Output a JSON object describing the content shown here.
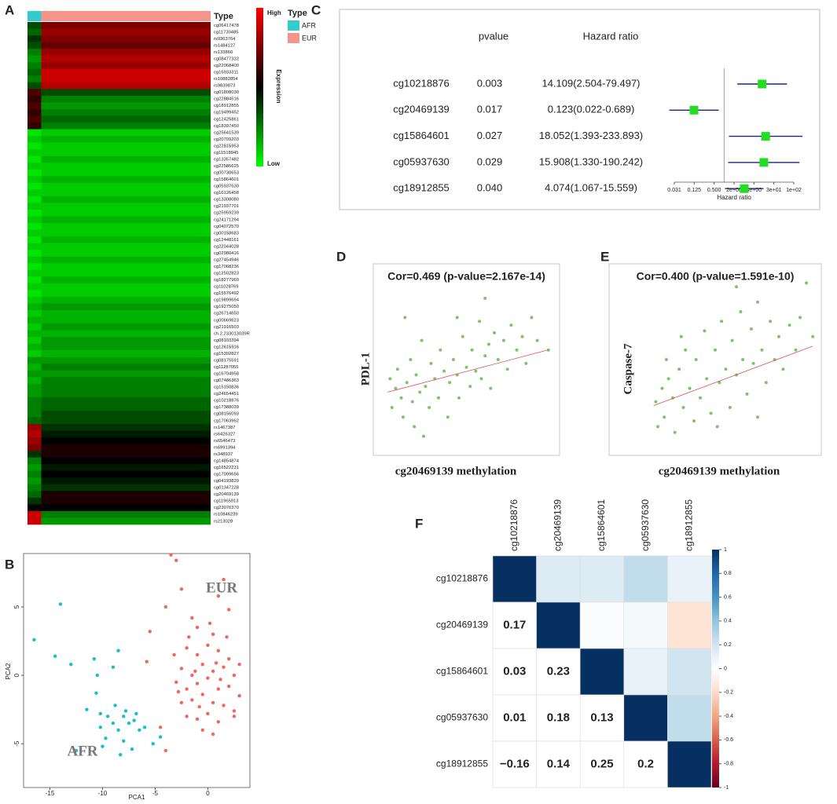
{
  "panel_labels": [
    "A",
    "B",
    "C",
    "D",
    "E",
    "F"
  ],
  "chart_data": [
    {
      "type": "heatmap",
      "type_label": "Type",
      "legend_title": "Expression",
      "high_label": "High",
      "low_label": "Low",
      "clim": [
        -1,
        1
      ],
      "colors": [
        "#00ff00",
        "#000000",
        "#ff0000"
      ],
      "groups": [
        "AFR",
        "EUR"
      ],
      "group_colors": [
        "#33cccc",
        "#f4948a"
      ],
      "group_sizes": [
        30,
        370
      ],
      "rows": [
        "cg06417478",
        "cg11730485",
        "rs9363764",
        "rs1484127",
        "rs133860",
        "cg08477332",
        "cg22068400",
        "cg16933311",
        "rs10882854",
        "rs9839873",
        "cg01808030",
        "cg22884516",
        "cg18912855",
        "cg19499452",
        "cg12425861",
        "cg18397450",
        "cg25641539",
        "cg20709203",
        "cg22815953",
        "cg11518945",
        "cg13357482",
        "cg22586625",
        "cg00730653",
        "cg15864601",
        "cg05937630",
        "cg16126458",
        "cg13308080",
        "cg21937701",
        "cg25959239",
        "cg24171294",
        "cg04072570",
        "cg00158683",
        "cg12448161",
        "cg22044028",
        "cg02980416",
        "cg27454946",
        "cg17068236",
        "cg12502823",
        "cg18277960",
        "cg11028769",
        "cg15576492",
        "cg19899694",
        "cg19275050",
        "cg26714650",
        "cg00669623",
        "cg21916503",
        "ch.2.233013039R",
        "cg08103394",
        "cg12615916",
        "cg15392827",
        "cg08175591",
        "cg11287055",
        "cg16704958",
        "cg07486363",
        "cg15150836",
        "cg24654451",
        "cg10218876",
        "cg17388039",
        "cg08156093",
        "cg17063962",
        "rs1467387",
        "rs6426327",
        "rs6546473",
        "rs6991394",
        "rs348937",
        "cg14854874",
        "cg16522231",
        "cg17099656",
        "cg04193820",
        "cg01347228",
        "cg20469139",
        "cg11965913",
        "cg23076370",
        "rs10846239",
        "rs213028"
      ],
      "values": [
        [
          -0.3,
          0.5
        ],
        [
          -0.4,
          0.6
        ],
        [
          -0.2,
          0.5
        ],
        [
          -0.3,
          0.4
        ],
        [
          -0.5,
          0.6
        ],
        [
          -0.6,
          0.7
        ],
        [
          -0.5,
          0.6
        ],
        [
          -0.4,
          0.8
        ],
        [
          -0.5,
          0.8
        ],
        [
          -0.3,
          0.7
        ],
        [
          0.3,
          -0.3
        ],
        [
          0.2,
          -0.5
        ],
        [
          0.3,
          -0.6
        ],
        [
          0.2,
          -0.5
        ],
        [
          0.3,
          -0.4
        ],
        [
          0.2,
          -0.5
        ],
        [
          -0.9,
          -0.8
        ],
        [
          -0.8,
          -0.7
        ],
        [
          -0.9,
          -0.8
        ],
        [
          -0.8,
          -0.8
        ],
        [
          -0.9,
          -0.7
        ],
        [
          -0.8,
          -0.8
        ],
        [
          -0.9,
          -0.8
        ],
        [
          -0.8,
          -0.7
        ],
        [
          -0.9,
          -0.8
        ],
        [
          -0.8,
          -0.8
        ],
        [
          -0.9,
          -0.7
        ],
        [
          -0.8,
          -0.8
        ],
        [
          -0.9,
          -0.8
        ],
        [
          -0.8,
          -0.7
        ],
        [
          -0.9,
          -0.8
        ],
        [
          -0.8,
          -0.8
        ],
        [
          -0.9,
          -0.7
        ],
        [
          -0.8,
          -0.8
        ],
        [
          -0.9,
          -0.8
        ],
        [
          -0.8,
          -0.7
        ],
        [
          -0.9,
          -0.8
        ],
        [
          -0.8,
          -0.8
        ],
        [
          -0.9,
          -0.7
        ],
        [
          -0.8,
          -0.8
        ],
        [
          -0.9,
          -0.8
        ],
        [
          -0.8,
          -0.7
        ],
        [
          -0.7,
          -0.6
        ],
        [
          -0.8,
          -0.7
        ],
        [
          -0.7,
          -0.7
        ],
        [
          -0.8,
          -0.6
        ],
        [
          -0.7,
          -0.7
        ],
        [
          -0.8,
          -0.6
        ],
        [
          -0.7,
          -0.6
        ],
        [
          -0.8,
          -0.7
        ],
        [
          -0.6,
          -0.6
        ],
        [
          -0.7,
          -0.5
        ],
        [
          -0.6,
          -0.6
        ],
        [
          -0.7,
          -0.5
        ],
        [
          -0.6,
          -0.5
        ],
        [
          -0.6,
          -0.5
        ],
        [
          -0.5,
          -0.4
        ],
        [
          -0.5,
          -0.4
        ],
        [
          -0.5,
          -0.3
        ],
        [
          -0.4,
          -0.3
        ],
        [
          0.6,
          -0.2
        ],
        [
          0.7,
          -0.1
        ],
        [
          0.6,
          0
        ],
        [
          0.5,
          0.1
        ],
        [
          -0.2,
          0.1
        ],
        [
          -0.5,
          0
        ],
        [
          -0.6,
          -0.1
        ],
        [
          -0.5,
          0
        ],
        [
          -0.6,
          -0.1
        ],
        [
          -0.5,
          -0.2
        ],
        [
          -0.4,
          0.1
        ],
        [
          -0.2,
          0.1
        ],
        [
          0,
          0
        ],
        [
          0.8,
          -0.5
        ],
        [
          0.8,
          -0.6
        ]
      ]
    },
    {
      "type": "scatter",
      "x_label": "PCA1",
      "y_label": "PCA2",
      "xlim": [
        -17.5,
        4
      ],
      "ylim": [
        -8.2,
        8.9
      ],
      "xticks": [
        -15,
        -10,
        -5,
        0
      ],
      "yticks": [
        -5,
        0,
        5
      ],
      "series": [
        {
          "name": "AFR",
          "color": "#1bbec4",
          "x": [
            -16.5,
            -14,
            -14.5,
            -13,
            -11.5,
            -10.8,
            -10.5,
            -10.6,
            -10.2,
            -9,
            -8.5,
            -9.5,
            -9,
            -8.5,
            -8,
            -7.5,
            -7,
            -6.5,
            -6,
            -7.8,
            -8.8,
            -9.7,
            -12.5,
            -10,
            -8.3,
            -7.2,
            -5.2,
            -4.5,
            -6.8,
            -8,
            -10.2
          ],
          "y": [
            2.6,
            5.2,
            1.4,
            0.8,
            -2.5,
            1.2,
            0,
            -1.3,
            -2.8,
            0.6,
            1.8,
            -3,
            -3.5,
            -4,
            -4.8,
            -3.5,
            -3.3,
            -4,
            -3.8,
            -2.6,
            -2.2,
            -4.6,
            -5.5,
            -5.2,
            -5.8,
            -5.4,
            -5,
            -4.5,
            -2.8,
            -3,
            -3.8
          ]
        },
        {
          "name": "EUR",
          "color": "#f0675e",
          "x": [
            -3.5,
            -3,
            -2.5,
            -4,
            -5.5,
            -5.8,
            1,
            1.5,
            2,
            -1,
            0.5,
            -1.5,
            -4.5,
            -4,
            2.5,
            -2,
            -1,
            0,
            1,
            2,
            -2.5,
            -1.5,
            -0.5,
            0.5,
            1.5,
            2.5,
            -3,
            -2,
            -1,
            0,
            1,
            2,
            3,
            -2.5,
            -1.5,
            -0.5,
            0.5,
            1.5,
            2.5,
            -2,
            -1,
            0,
            1,
            -0.5,
            0.5,
            -1.8,
            0.2,
            1.8,
            -3.2,
            3,
            -0.8,
            0.8,
            -1.2,
            1.2,
            -2.8
          ],
          "y": [
            8.8,
            8.4,
            6.3,
            5,
            3.2,
            1,
            5.8,
            7,
            4.8,
            3.5,
            3,
            4.2,
            -3.8,
            -5.5,
            -3,
            2,
            1.5,
            2.2,
            1.8,
            1.2,
            0.5,
            0,
            0.8,
            0.3,
            0.6,
            0,
            -0.5,
            -1,
            -0.6,
            -0.2,
            -1,
            -0.8,
            -1.5,
            -2,
            -1.8,
            -1.4,
            -2,
            -2.2,
            -2.6,
            -3,
            -3.2,
            -2.8,
            -3.4,
            -4,
            -4.3,
            2.8,
            3.8,
            2.8,
            1.5,
            0.8,
            -2.3,
            0.9,
            0.3,
            -0.3,
            -1.2
          ]
        }
      ]
    },
    {
      "type": "forest",
      "pvalue_header": "pvalue",
      "hr_header": "Hazard ratio",
      "x_label": "Hazard ratio",
      "log_x": true,
      "xlim": [
        0.03125,
        128
      ],
      "reference_line": 1,
      "color": "#22dd22",
      "whisker_color": "#1a237e",
      "xticks": [
        {
          "value": 0.03125,
          "label": "0.031"
        },
        0.125,
        {
          "value": 0.5,
          "label": "0.500"
        },
        {
          "value": 2,
          "label": "2e+00"
        },
        {
          "value": 8,
          "label": "8e+00"
        },
        {
          "value": 32,
          "label": "3e+01"
        },
        {
          "value": 128,
          "label": "1e+02"
        }
      ],
      "rows": [
        {
          "name": "cg10218876",
          "pvalue": 0.003,
          "pvalue_label": "0.003",
          "hr": 14.109,
          "lower": 2.504,
          "upper": 79.497,
          "hr_label": "14.109(2.504-79.497)"
        },
        {
          "name": "cg20469139",
          "pvalue": 0.017,
          "pvalue_label": "0.017",
          "hr": 0.123,
          "lower": 0.022,
          "upper": 0.689,
          "hr_label": "0.123(0.022-0.689)"
        },
        {
          "name": "cg15864601",
          "pvalue": 0.027,
          "pvalue_label": "0.027",
          "hr": 18.052,
          "lower": 1.393,
          "upper": 233.893,
          "hr_label": "18.052(1.393-233.893)"
        },
        {
          "name": "cg05937630",
          "pvalue": 0.029,
          "pvalue_label": "0.029",
          "hr": 15.908,
          "lower": 1.33,
          "upper": 190.242,
          "hr_label": "15.908(1.330-190.242)"
        },
        {
          "name": "cg18912855",
          "pvalue": 0.04,
          "pvalue_label": "0.040",
          "hr": 4.074,
          "lower": 1.067,
          "upper": 15.559,
          "hr_label": "4.074(1.067-15.559)"
        }
      ]
    },
    {
      "type": "scatter",
      "title": "Cor=0.469 (p-value=2.167e-14)",
      "x_label": "cg20469139 methylation",
      "y_label": "PDL-1",
      "xlim": [
        0,
        1
      ],
      "ylim": [
        0,
        1
      ],
      "fit_color": "#e05050",
      "fit": {
        "x": [
          0.076,
          0.937
        ],
        "y": [
          0.33,
          0.55
        ]
      },
      "series": [
        {
          "name": "samples",
          "color": "#7cc46a",
          "x": [
            0.09,
            0.1,
            0.12,
            0.13,
            0.15,
            0.16,
            0.18,
            0.2,
            0.21,
            0.23,
            0.25,
            0.26,
            0.28,
            0.3,
            0.31,
            0.33,
            0.35,
            0.36,
            0.38,
            0.4,
            0.41,
            0.43,
            0.45,
            0.46,
            0.48,
            0.5,
            0.52,
            0.53,
            0.55,
            0.57,
            0.58,
            0.6,
            0.62,
            0.63,
            0.65,
            0.67,
            0.7,
            0.72,
            0.74,
            0.77,
            0.8,
            0.82,
            0.85,
            0.6,
            0.88,
            0.94,
            0.17,
            0.27,
            0.22,
            0.45
          ],
          "y": [
            0.4,
            0.25,
            0.35,
            0.45,
            0.3,
            0.2,
            0.38,
            0.5,
            0.28,
            0.42,
            0.33,
            0.6,
            0.36,
            0.25,
            0.48,
            0.4,
            0.3,
            0.55,
            0.44,
            0.2,
            0.38,
            0.5,
            0.42,
            0.3,
            0.62,
            0.46,
            0.36,
            0.55,
            0.44,
            0.7,
            0.4,
            0.52,
            0.58,
            0.35,
            0.64,
            0.5,
            0.6,
            0.45,
            0.68,
            0.55,
            0.62,
            0.48,
            0.72,
            0.82,
            0.6,
            0.55,
            0.72,
            0.1,
            0.15,
            0.72
          ]
        }
      ]
    },
    {
      "type": "scatter",
      "title": "Cor=0.400 (p-value=1.591e-10)",
      "x_label": "cg20469139 methylation",
      "y_label": "Caspase-7",
      "xlim": [
        0,
        1
      ],
      "ylim": [
        0,
        1
      ],
      "fit_color": "#e05050",
      "fit": {
        "x": [
          0.21,
          0.96
        ],
        "y": [
          0.26,
          0.57
        ]
      },
      "series": [
        {
          "name": "samples",
          "color": "#7cc46a",
          "x": [
            0.22,
            0.23,
            0.25,
            0.26,
            0.28,
            0.3,
            0.31,
            0.33,
            0.35,
            0.36,
            0.38,
            0.4,
            0.41,
            0.43,
            0.45,
            0.46,
            0.48,
            0.5,
            0.52,
            0.53,
            0.55,
            0.57,
            0.58,
            0.6,
            0.62,
            0.63,
            0.65,
            0.67,
            0.68,
            0.7,
            0.72,
            0.74,
            0.76,
            0.78,
            0.8,
            0.82,
            0.85,
            0.88,
            0.9,
            0.93,
            0.96,
            0.27,
            0.34,
            0.51,
            0.7,
            0.6
          ],
          "y": [
            0.28,
            0.15,
            0.35,
            0.2,
            0.4,
            0.3,
            0.12,
            0.45,
            0.25,
            0.55,
            0.35,
            0.18,
            0.5,
            0.3,
            0.65,
            0.4,
            0.22,
            0.55,
            0.38,
            0.7,
            0.45,
            0.25,
            0.6,
            0.42,
            0.75,
            0.5,
            0.32,
            0.66,
            0.48,
            0.8,
            0.55,
            0.38,
            0.7,
            0.5,
            0.62,
            0.45,
            0.68,
            0.55,
            0.72,
            0.9,
            0.62,
            0.5,
            0.62,
            0.15,
            0.2,
            0.88
          ]
        }
      ]
    },
    {
      "type": "correlation",
      "labels": [
        "cg10218876",
        "cg20469139",
        "cg15864601",
        "cg05937630",
        "cg18912855"
      ],
      "clim": [
        -1,
        1
      ],
      "colors": [
        "#67001f",
        "#b2182b",
        "#d6604d",
        "#f4a582",
        "#fddbc7",
        "#ffffff",
        "#d1e5f0",
        "#92c5de",
        "#4393c3",
        "#2166ac",
        "#053061"
      ],
      "cticks": [
        1,
        0.8,
        0.6,
        0.4,
        0.2,
        0,
        -0.2,
        -0.4,
        -0.6,
        -0.8,
        -1
      ],
      "values": [
        [
          1,
          0.15,
          0.15,
          0.25,
          0.1
        ],
        [
          0.17,
          1,
          0.02,
          0.05,
          -0.15
        ],
        [
          0.03,
          0.23,
          1,
          0.1,
          0.2
        ],
        [
          0.01,
          0.18,
          0.13,
          1,
          0.25
        ],
        [
          -0.16,
          0.14,
          0.25,
          0.2,
          1
        ]
      ],
      "value_labels": [
        [
          null,
          null,
          null,
          null,
          null
        ],
        [
          "0.17",
          null,
          null,
          null,
          null
        ],
        [
          "0.03",
          "0.23",
          null,
          null,
          null
        ],
        [
          "0.01",
          "0.18",
          "0.13",
          null,
          null
        ],
        [
          "−0.16",
          "0.14",
          "0.25",
          "0.2",
          null
        ]
      ]
    }
  ]
}
